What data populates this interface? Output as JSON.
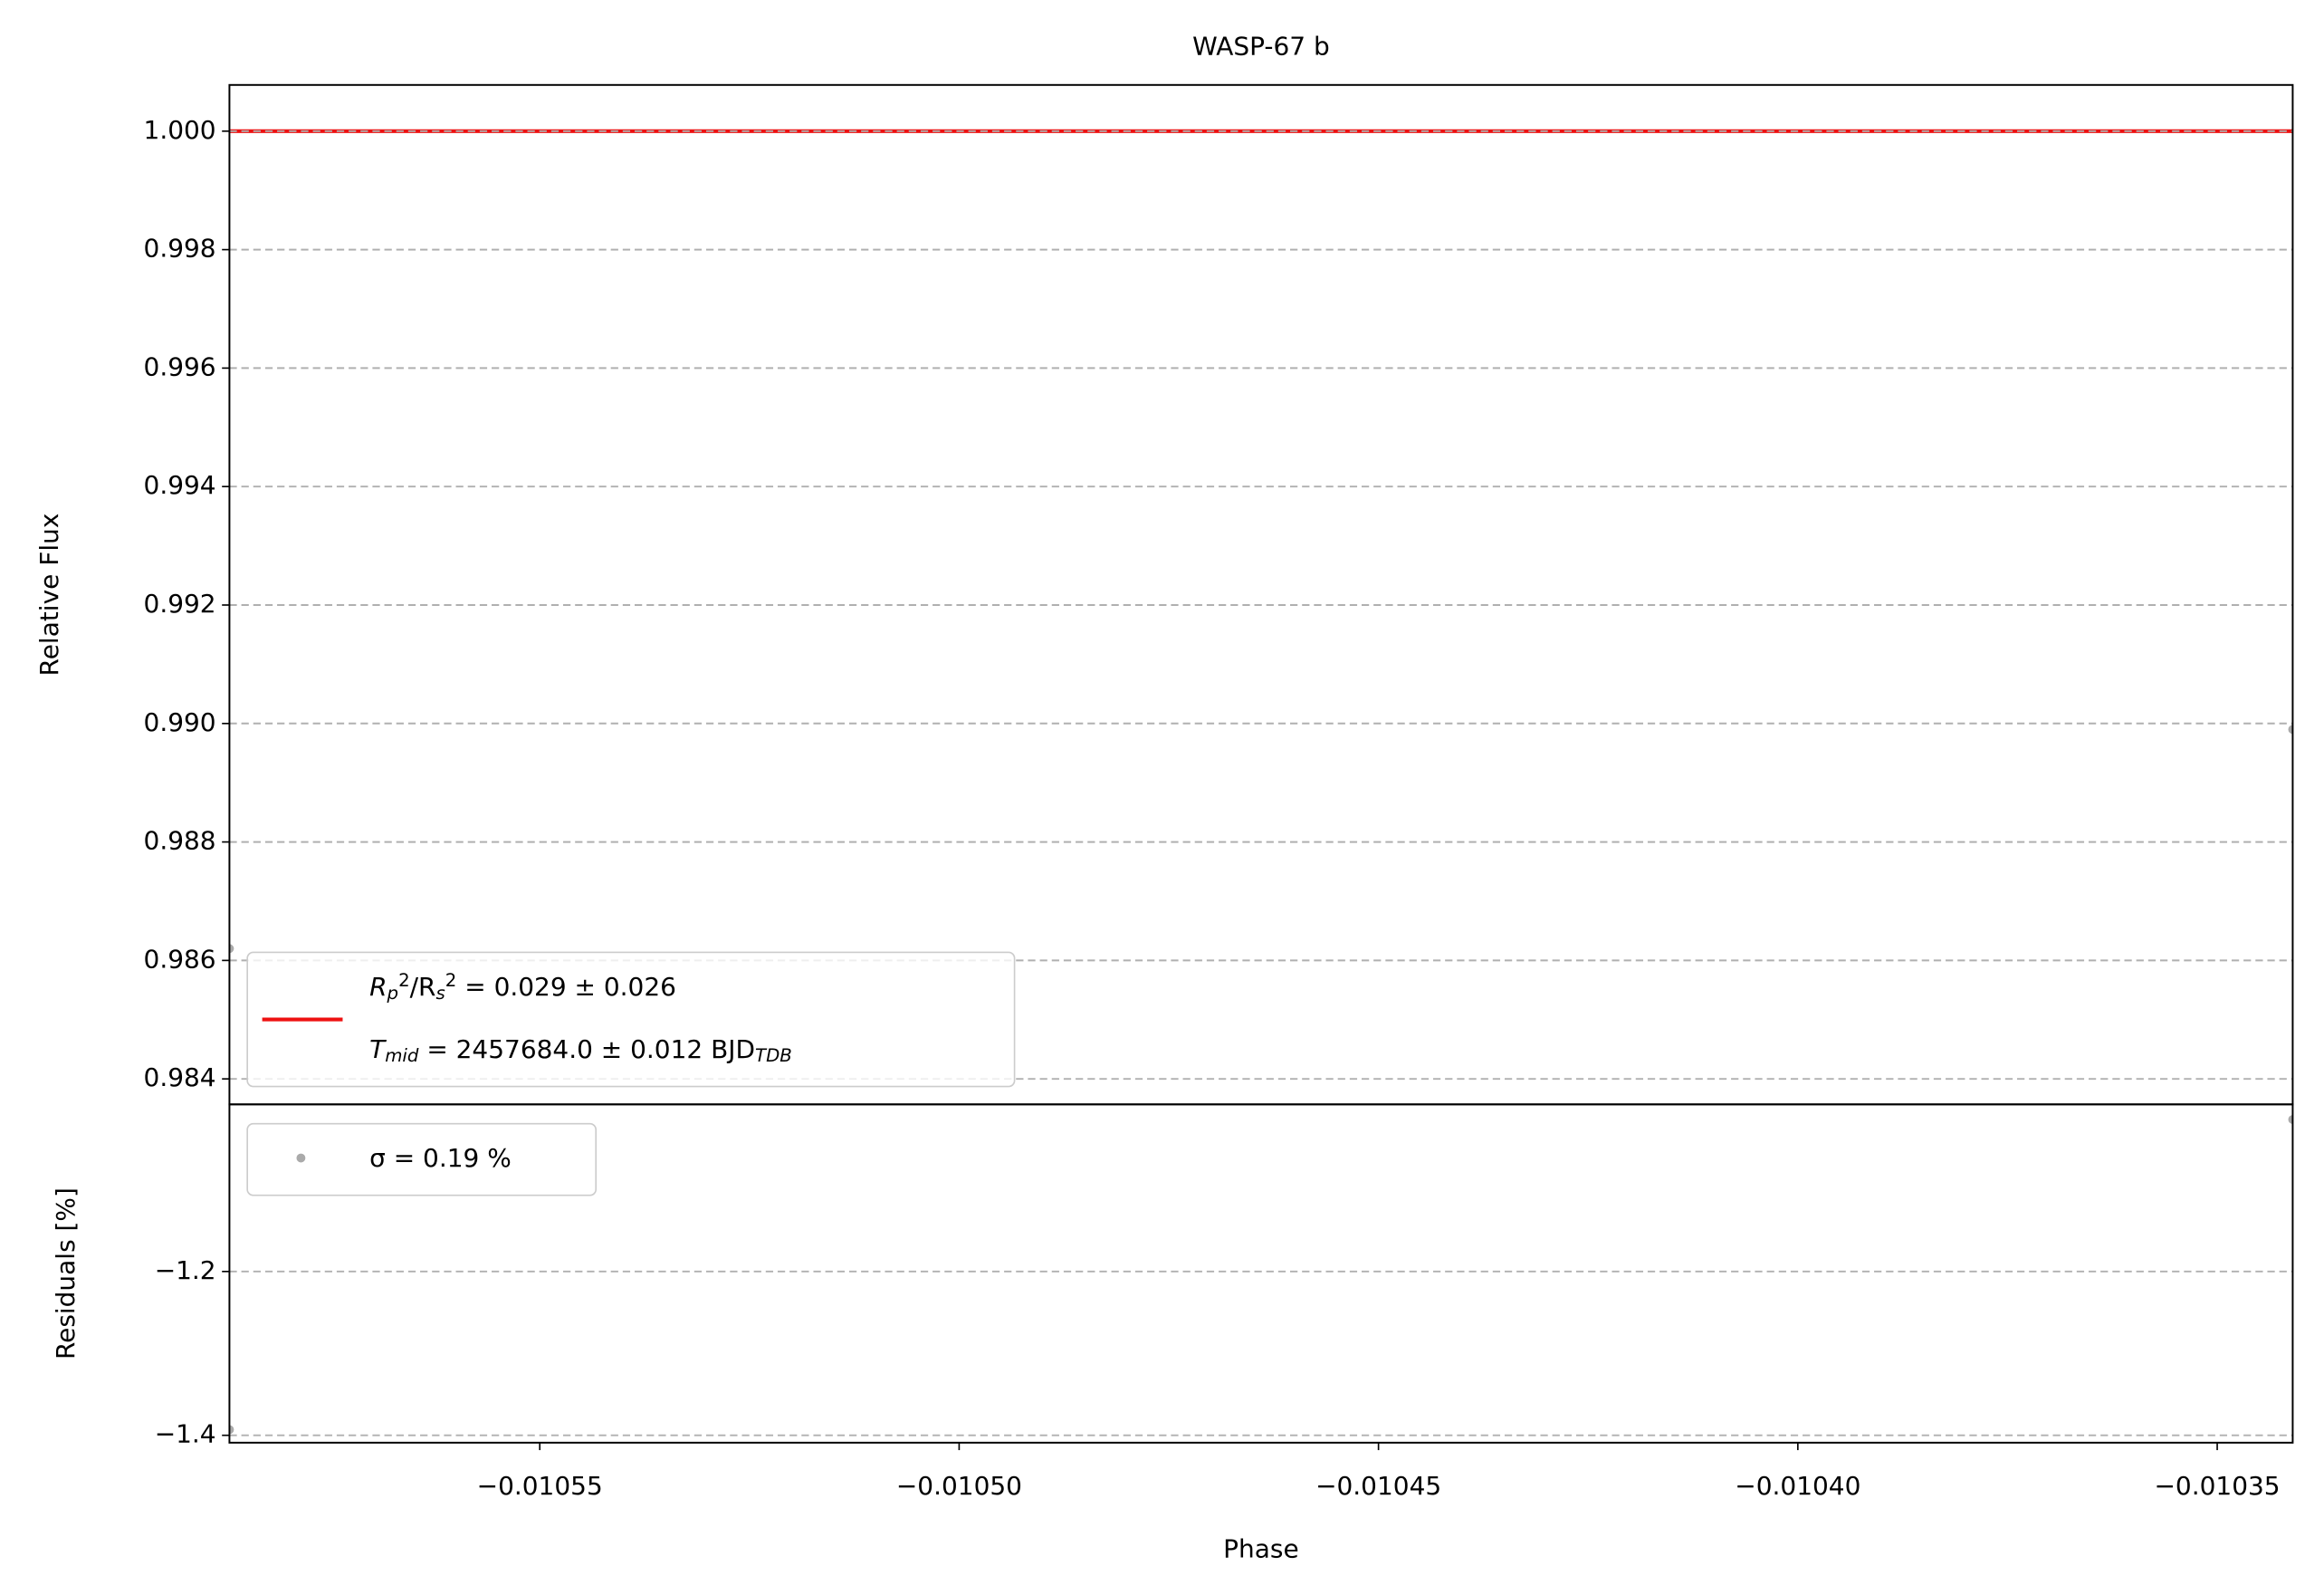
{
  "chart_data": [
    {
      "type": "line",
      "title": "WASP-67 b",
      "y_label": "Relative Flux",
      "xlim": [
        -0.010587,
        -0.010341
      ],
      "ylim": [
        0.98357,
        1.00078
      ],
      "yticks": [
        0.984,
        0.986,
        0.988,
        {
          "value": 0.99,
          "label": "0.990"
        },
        0.992,
        0.994,
        0.996,
        0.998,
        {
          "value": 1,
          "label": "1.000"
        }
      ],
      "grid": true,
      "legend": "lower left",
      "series": [
        {
          "name": "R_p^2/R_s^2 = 0.029 ± 0.026",
          "name2": "T_{mid} = 2457684.0 ± 0.012 BJD_{TDB}",
          "color": "#ee1111",
          "type": "line",
          "x": [
            -0.010587,
            -0.010341
          ],
          "values": [
            1,
            1
          ]
        },
        {
          "color": "#aaaaaa",
          "type": "scatter",
          "x": [
            -0.010587,
            -0.010341
          ],
          "values": [
            0.9862,
            0.9899
          ]
        }
      ]
    },
    {
      "type": "scatter",
      "x_label": "Phase",
      "y_label": "Residuals [%]",
      "xlim": [
        -0.010587,
        -0.010341
      ],
      "ylim": [
        -1.409,
        -0.996
      ],
      "xticks": [
        {
          "value": -0.01055,
          "label": "−0.01055"
        },
        {
          "value": -0.0105,
          "label": "−0.01050"
        },
        {
          "value": -0.01045,
          "label": "−0.01045"
        },
        {
          "value": -0.0104,
          "label": "−0.01040"
        },
        {
          "value": -0.01035,
          "label": "−0.01035"
        }
      ],
      "yticks": [
        {
          "value": -1.4,
          "label": "−1.4"
        },
        {
          "value": -1.2,
          "label": "−1.2"
        }
      ],
      "grid": true,
      "legend": "upper left",
      "series": [
        {
          "name": "σ = 0.19 %",
          "color": "#aaaaaa",
          "type": "scatter",
          "x": [
            -0.010587,
            -0.010341
          ],
          "values": [
            -1.393,
            -1.0145
          ]
        }
      ]
    }
  ]
}
